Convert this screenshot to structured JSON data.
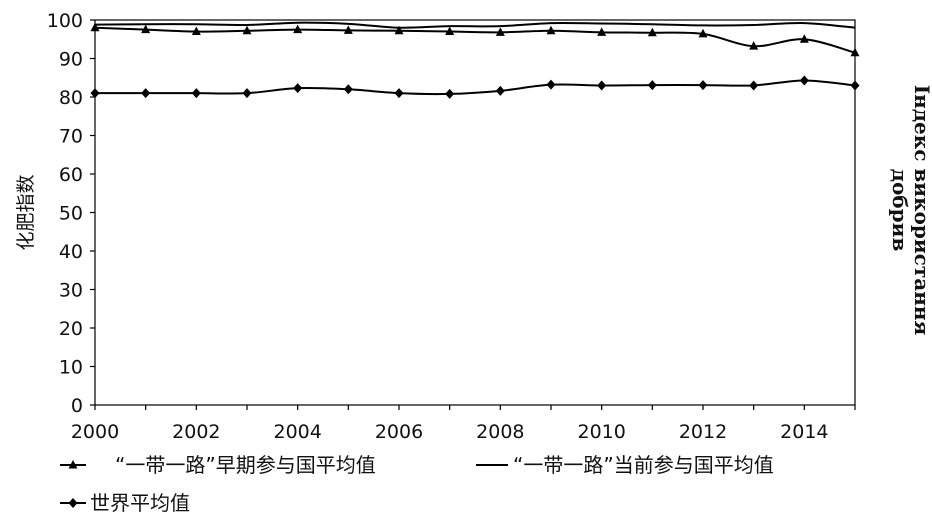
{
  "chart_data": {
    "type": "line",
    "x": [
      2000,
      2001,
      2002,
      2003,
      2004,
      2005,
      2006,
      2007,
      2008,
      2009,
      2010,
      2011,
      2012,
      2013,
      2014,
      2015
    ],
    "xticks": [
      "2000",
      "2002",
      "2004",
      "2006",
      "2008",
      "2010",
      "2012",
      "2014"
    ],
    "yticks": [
      "0",
      "10",
      "20",
      "30",
      "40",
      "50",
      "60",
      "70",
      "80",
      "90",
      "100"
    ],
    "ylim": [
      0,
      100
    ],
    "xlim": [
      2000,
      2015
    ],
    "ylabel": "化肥指数",
    "ylabel_right": [
      "Індекс використання",
      "добрив"
    ],
    "grid": false,
    "legend_position": "bottom",
    "series": [
      {
        "name": "“一带一路”早期参与国平均值",
        "marker": "triangle",
        "values": [
          98.0,
          97.5,
          97.0,
          97.2,
          97.5,
          97.3,
          97.2,
          97.0,
          96.8,
          97.2,
          96.8,
          96.7,
          96.4,
          93.2,
          95.0,
          91.5
        ]
      },
      {
        "name": "“一带一路”当前参与国平均值",
        "marker": "none",
        "values": [
          98.8,
          98.9,
          98.9,
          98.7,
          99.3,
          99.0,
          98.0,
          98.4,
          98.4,
          99.2,
          99.1,
          98.9,
          98.6,
          98.7,
          99.2,
          98.0
        ]
      },
      {
        "name": "世界平均值",
        "marker": "diamond",
        "values": [
          81.0,
          81.0,
          81.0,
          81.0,
          82.3,
          82.0,
          81.0,
          80.8,
          81.6,
          83.2,
          83.0,
          83.1,
          83.1,
          83.0,
          84.3,
          83.0
        ]
      }
    ]
  }
}
